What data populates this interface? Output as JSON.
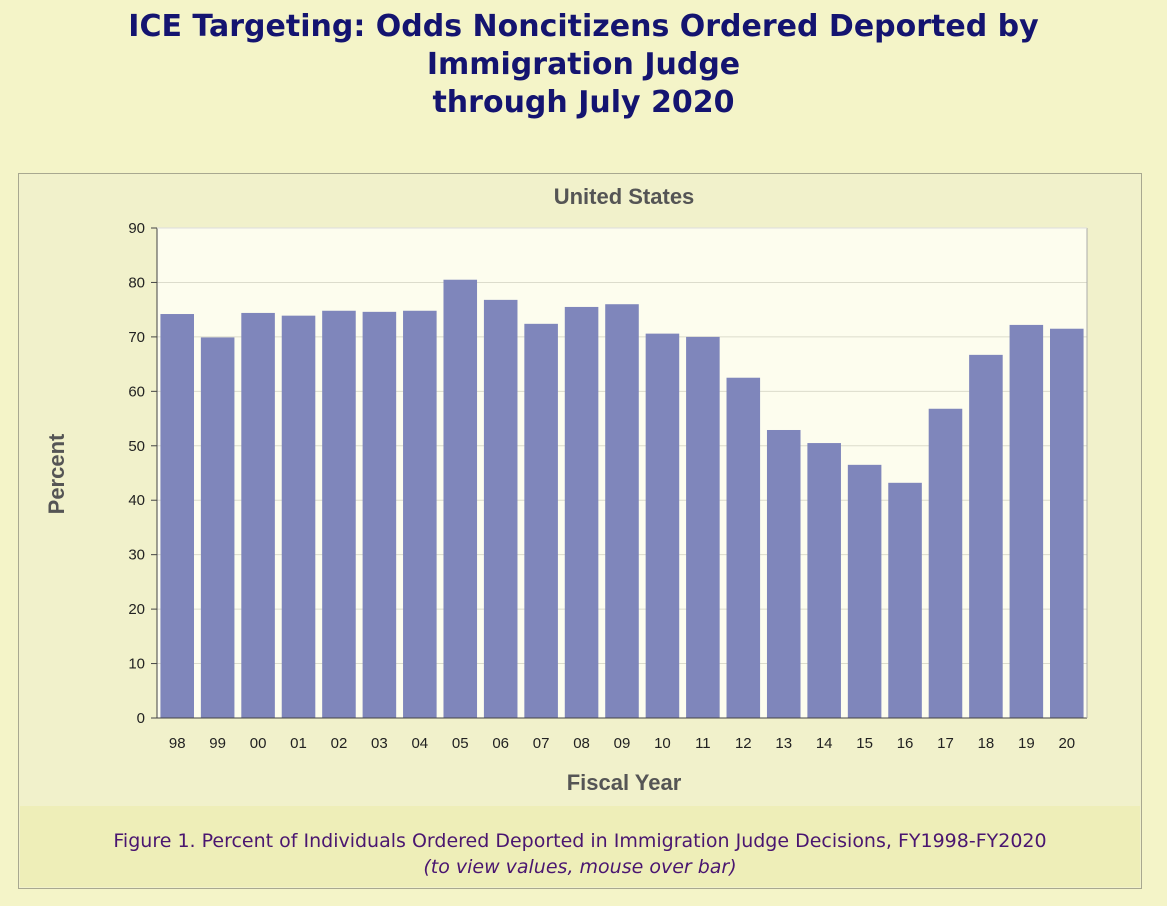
{
  "page": {
    "title_lines": [
      "ICE Targeting: Odds Noncitizens Ordered Deported by",
      "Immigration Judge",
      "through July 2020"
    ]
  },
  "caption": {
    "main": "Figure 1. Percent of Individuals Ordered Deported in Immigration Judge Decisions, FY1998-FY2020",
    "sub": "(to view values, mouse over bar)"
  },
  "colors": {
    "bar": "#7f86bb",
    "plot_background": "#fdfdee",
    "page_background": "#f4f4c8",
    "title": "#141470",
    "axis_text": "#555555"
  },
  "chart_data": {
    "type": "bar",
    "title": "United States",
    "xlabel": "Fiscal Year",
    "ylabel": "Percent",
    "ylim": [
      0,
      90
    ],
    "yticks": [
      0,
      10,
      20,
      30,
      40,
      50,
      60,
      70,
      80,
      90
    ],
    "grid": true,
    "categories": [
      "98",
      "99",
      "00",
      "01",
      "02",
      "03",
      "04",
      "05",
      "06",
      "07",
      "08",
      "09",
      "10",
      "11",
      "12",
      "13",
      "14",
      "15",
      "16",
      "17",
      "18",
      "19",
      "20"
    ],
    "values": [
      74.2,
      69.9,
      74.4,
      73.9,
      74.8,
      74.6,
      74.8,
      80.5,
      76.8,
      72.4,
      75.5,
      76.0,
      70.6,
      70.0,
      62.5,
      52.9,
      50.5,
      46.5,
      43.2,
      56.8,
      66.7,
      72.2,
      71.5
    ]
  }
}
